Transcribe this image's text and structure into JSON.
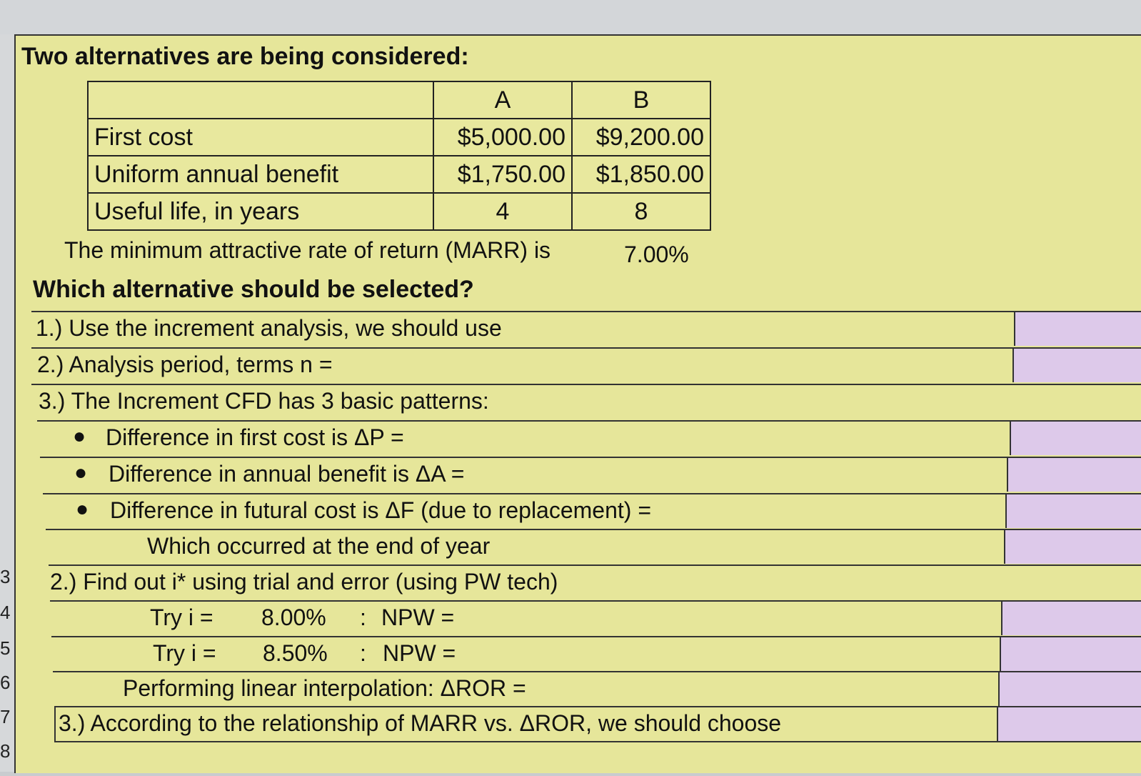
{
  "row_numbers": [
    "3",
    "4",
    "5",
    "6",
    "7",
    "8"
  ],
  "header_text": "Two alternatives are being considered:",
  "table": {
    "columns": [
      "A",
      "B"
    ],
    "rows": [
      {
        "label": "First cost",
        "a": "$5,000.00",
        "b": "$9,200.00"
      },
      {
        "label": "Uniform annual benefit",
        "a": "$1,750.00",
        "b": "$1,850.00"
      },
      {
        "label": "Useful life, in years",
        "a": "4",
        "b": "8"
      }
    ]
  },
  "marr_text": "The minimum attractive rate of return (MARR) is",
  "marr_value": "7.00%",
  "question": "Which alternative should be selected?",
  "items": {
    "q1": "1.) Use the increment analysis, we should use",
    "q2": "2.) Analysis period, terms n =",
    "q3": "3.) The Increment CFD has 3 basic patterns:",
    "b1": "Difference in first cost is ΔP =",
    "b2": "Difference in annual benefit is ΔA =",
    "b3": "Difference in futural cost is ΔF (due to replacement) =",
    "b3_sub": "Which occurred at the end of year",
    "q4": "2.) Find out i* using trial and error (using PW tech)",
    "try_label": "Try i =",
    "try1_rate": "8.00%",
    "try2_rate": "8.50%",
    "colon": ":",
    "npw_label": "NPW =",
    "interp": "Performing linear interpolation: ΔROR =",
    "q5": "3.) According to the relationship of MARR vs. ΔROR, we should choose"
  },
  "colors": {
    "sheet_bg": "#e6e69a",
    "answer_cell": "#ddc9ea",
    "border": "#333333"
  }
}
